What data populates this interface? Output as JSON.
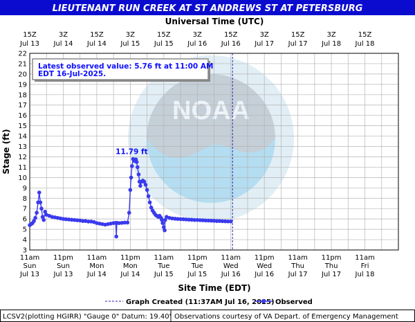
{
  "chart_data": {
    "type": "line",
    "title": "LIEUTENANT RUN CREEK AT ST ANDREWS ST AT PETERSBURG",
    "top_axis_title": "Universal Time (UTC)",
    "xlabel": "Site Time (EDT)",
    "ylabel": "Stage (ft)",
    "ylim": [
      3,
      22
    ],
    "y_ticks": [
      3,
      4,
      5,
      6,
      7,
      8,
      9,
      10,
      11,
      12,
      13,
      14,
      15,
      16,
      17,
      18,
      19,
      20,
      21,
      22
    ],
    "xlim_hours_edt": [
      0,
      132
    ],
    "grid": true,
    "bottom_ticks": [
      {
        "h": 0,
        "t1": "11am",
        "t2": "Sun",
        "t3": "Jul 13"
      },
      {
        "h": 12,
        "t1": "11pm",
        "t2": "Sun",
        "t3": "Jul 13"
      },
      {
        "h": 24,
        "t1": "11am",
        "t2": "Mon",
        "t3": "Jul 14"
      },
      {
        "h": 36,
        "t1": "11pm",
        "t2": "Mon",
        "t3": "Jul 14"
      },
      {
        "h": 48,
        "t1": "11am",
        "t2": "Tue",
        "t3": "Jul 15"
      },
      {
        "h": 60,
        "t1": "11pm",
        "t2": "Tue",
        "t3": "Jul 15"
      },
      {
        "h": 72,
        "t1": "11am",
        "t2": "Wed",
        "t3": "Jul 16"
      },
      {
        "h": 84,
        "t1": "11pm",
        "t2": "Wed",
        "t3": "Jul 16"
      },
      {
        "h": 96,
        "t1": "11am",
        "t2": "Thu",
        "t3": "Jul 17"
      },
      {
        "h": 108,
        "t1": "11pm",
        "t2": "Thu",
        "t3": "Jul 17"
      },
      {
        "h": 120,
        "t1": "11am",
        "t2": "Fri",
        "t3": "Jul 18"
      }
    ],
    "top_ticks": [
      {
        "h": 0,
        "t1": "15Z",
        "t2": "Jul 13"
      },
      {
        "h": 12,
        "t1": "3Z",
        "t2": "Jul 14"
      },
      {
        "h": 24,
        "t1": "15Z",
        "t2": "Jul 14"
      },
      {
        "h": 36,
        "t1": "3Z",
        "t2": "Jul 15"
      },
      {
        "h": 48,
        "t1": "15Z",
        "t2": "Jul 15"
      },
      {
        "h": 60,
        "t1": "3Z",
        "t2": "Jul 16"
      },
      {
        "h": 72,
        "t1": "15Z",
        "t2": "Jul 16"
      },
      {
        "h": 84,
        "t1": "3Z",
        "t2": "Jul 17"
      },
      {
        "h": 96,
        "t1": "15Z",
        "t2": "Jul 17"
      },
      {
        "h": 108,
        "t1": "3Z",
        "t2": "Jul 18"
      },
      {
        "h": 120,
        "t1": "15Z",
        "t2": "Jul 18"
      }
    ],
    "latest_box_line1": "Latest observed value: 5.76 ft at 11:00 AM",
    "latest_box_line2": "EDT 16-Jul-2025.",
    "peak_label": "11.79 ft",
    "peak": {
      "x": 37.0,
      "y": 11.79
    },
    "graph_created_hour": 72.6,
    "legend_created": "Graph Created (11:37AM Jul 16, 2025)",
    "legend_observed": "Observed",
    "footer_left": "LCSV2(plotting HGIRR) \"Gauge 0\" Datum: 19.40'",
    "footer_right": "Observations courtesy of VA Depart. of Emergency Management",
    "colors": {
      "title_bg": "#0b0bd0",
      "series": "#3a3aee",
      "grid": "#b4b4b4",
      "created_line": "#2222aa"
    },
    "series": [
      {
        "name": "Observed",
        "points": [
          [
            0,
            5.4
          ],
          [
            0.5,
            5.5
          ],
          [
            1,
            5.6
          ],
          [
            1.5,
            5.8
          ],
          [
            2,
            6.1
          ],
          [
            2.5,
            6.6
          ],
          [
            3,
            7.6
          ],
          [
            3.4,
            8.55
          ],
          [
            3.8,
            7.6
          ],
          [
            4.2,
            7.0
          ],
          [
            4.6,
            6.2
          ],
          [
            5,
            5.9
          ],
          [
            5.5,
            6.7
          ],
          [
            6,
            6.4
          ],
          [
            7,
            6.3
          ],
          [
            8,
            6.2
          ],
          [
            9,
            6.15
          ],
          [
            10,
            6.1
          ],
          [
            11,
            6.05
          ],
          [
            12,
            6.0
          ],
          [
            13,
            5.97
          ],
          [
            14,
            5.95
          ],
          [
            15,
            5.92
          ],
          [
            16,
            5.9
          ],
          [
            17,
            5.87
          ],
          [
            18,
            5.85
          ],
          [
            19,
            5.8
          ],
          [
            20,
            5.8
          ],
          [
            21,
            5.75
          ],
          [
            22,
            5.75
          ],
          [
            23,
            5.7
          ],
          [
            24,
            5.6
          ],
          [
            25,
            5.55
          ],
          [
            26,
            5.5
          ],
          [
            27,
            5.45
          ],
          [
            28,
            5.5
          ],
          [
            29,
            5.55
          ],
          [
            30,
            5.6
          ],
          [
            30.8,
            5.62
          ],
          [
            31,
            4.3
          ],
          [
            31.2,
            5.62
          ],
          [
            32,
            5.6
          ],
          [
            33,
            5.62
          ],
          [
            34,
            5.65
          ],
          [
            35,
            5.65
          ],
          [
            35.6,
            6.6
          ],
          [
            36,
            8.8
          ],
          [
            36.3,
            10.0
          ],
          [
            36.6,
            11.1
          ],
          [
            37,
            11.79
          ],
          [
            37.5,
            11.6
          ],
          [
            38,
            11.75
          ],
          [
            38.3,
            11.5
          ],
          [
            38.6,
            11.0
          ],
          [
            39,
            10.3
          ],
          [
            39.3,
            9.6
          ],
          [
            39.6,
            9.2
          ],
          [
            40,
            9.6
          ],
          [
            40.5,
            9.7
          ],
          [
            41,
            9.6
          ],
          [
            41.5,
            9.3
          ],
          [
            42,
            8.8
          ],
          [
            42.5,
            8.2
          ],
          [
            43,
            7.6
          ],
          [
            43.5,
            7.1
          ],
          [
            44,
            6.8
          ],
          [
            44.5,
            6.6
          ],
          [
            45,
            6.4
          ],
          [
            45.5,
            6.3
          ],
          [
            46,
            6.2
          ],
          [
            46.5,
            6.3
          ],
          [
            47,
            6.1
          ],
          [
            47.3,
            5.9
          ],
          [
            47.6,
            5.6
          ],
          [
            48,
            5.2
          ],
          [
            48.3,
            4.9
          ],
          [
            48.5,
            5.9
          ],
          [
            49,
            6.2
          ],
          [
            50,
            6.1
          ],
          [
            51,
            6.05
          ],
          [
            52,
            6.02
          ],
          [
            53,
            6.0
          ],
          [
            54,
            5.98
          ],
          [
            55,
            5.97
          ],
          [
            56,
            5.95
          ],
          [
            57,
            5.93
          ],
          [
            58,
            5.92
          ],
          [
            59,
            5.9
          ],
          [
            60,
            5.9
          ],
          [
            61,
            5.88
          ],
          [
            62,
            5.87
          ],
          [
            63,
            5.85
          ],
          [
            64,
            5.84
          ],
          [
            65,
            5.83
          ],
          [
            66,
            5.82
          ],
          [
            67,
            5.8
          ],
          [
            68,
            5.8
          ],
          [
            69,
            5.78
          ],
          [
            70,
            5.77
          ],
          [
            71,
            5.76
          ],
          [
            72,
            5.76
          ]
        ]
      }
    ]
  }
}
